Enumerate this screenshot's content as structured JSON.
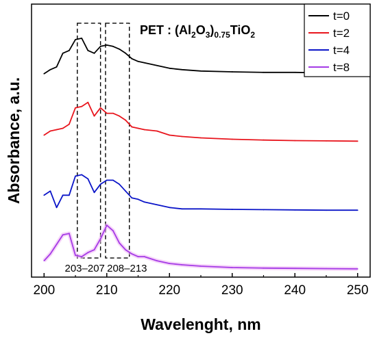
{
  "chart_data": {
    "type": "line",
    "title": "",
    "xlabel": "Wavelenght, nm",
    "ylabel": "Absorbance, a.u.",
    "xlim": [
      198,
      252
    ],
    "x_ticks": [
      200,
      210,
      220,
      230,
      240,
      250
    ],
    "x_tick_labels": [
      "200",
      "210",
      "220",
      "230",
      "240",
      "250"
    ],
    "y_ticks_shown": false,
    "ylim": [
      0,
      1
    ],
    "grid": false,
    "legend_position": "top-right",
    "annotation_formula": {
      "prefix": "PET : (Al",
      "sub1": "2",
      "mid1": "O",
      "sub2": "3",
      "mid2": ")",
      "sub3": "0.75",
      "mid3": "TiO",
      "sub4": "2"
    },
    "regions": [
      {
        "label": "203–207",
        "x_range": [
          205.3,
          209.0
        ],
        "y_range": [
          0.07,
          0.93
        ]
      },
      {
        "label": "208–213",
        "x_range": [
          209.8,
          213.6
        ],
        "y_range": [
          0.07,
          0.93
        ]
      }
    ],
    "x": [
      200,
      201,
      202,
      203,
      204,
      205,
      206,
      207,
      208,
      209,
      210,
      211,
      212,
      213,
      214,
      215,
      216,
      218,
      220,
      222,
      225,
      230,
      235,
      240,
      245,
      250
    ],
    "series": [
      {
        "name": "t=0",
        "color": "#000000",
        "values": [
          0.745,
          0.76,
          0.77,
          0.82,
          0.83,
          0.87,
          0.875,
          0.83,
          0.82,
          0.845,
          0.85,
          0.845,
          0.835,
          0.82,
          0.8,
          0.79,
          0.785,
          0.775,
          0.765,
          0.76,
          0.755,
          0.752,
          0.75,
          0.75,
          0.748,
          0.748
        ]
      },
      {
        "name": "t=2",
        "color": "#e8141c",
        "values": [
          0.52,
          0.535,
          0.54,
          0.545,
          0.56,
          0.62,
          0.625,
          0.64,
          0.59,
          0.62,
          0.6,
          0.6,
          0.59,
          0.575,
          0.55,
          0.545,
          0.54,
          0.535,
          0.52,
          0.515,
          0.51,
          0.505,
          0.502,
          0.5,
          0.499,
          0.498
        ]
      },
      {
        "name": "t=4",
        "color": "#0a14c8",
        "values": [
          0.3,
          0.315,
          0.255,
          0.3,
          0.3,
          0.37,
          0.375,
          0.36,
          0.31,
          0.34,
          0.355,
          0.355,
          0.34,
          0.315,
          0.29,
          0.285,
          0.275,
          0.265,
          0.255,
          0.25,
          0.25,
          0.248,
          0.247,
          0.246,
          0.245,
          0.245
        ]
      },
      {
        "name": "t=8",
        "color": "#a43ae6",
        "values": [
          0.06,
          0.085,
          0.12,
          0.155,
          0.16,
          0.08,
          0.075,
          0.09,
          0.1,
          0.14,
          0.19,
          0.17,
          0.125,
          0.1,
          0.085,
          0.075,
          0.075,
          0.06,
          0.05,
          0.045,
          0.04,
          0.035,
          0.033,
          0.032,
          0.031,
          0.03
        ]
      }
    ]
  }
}
